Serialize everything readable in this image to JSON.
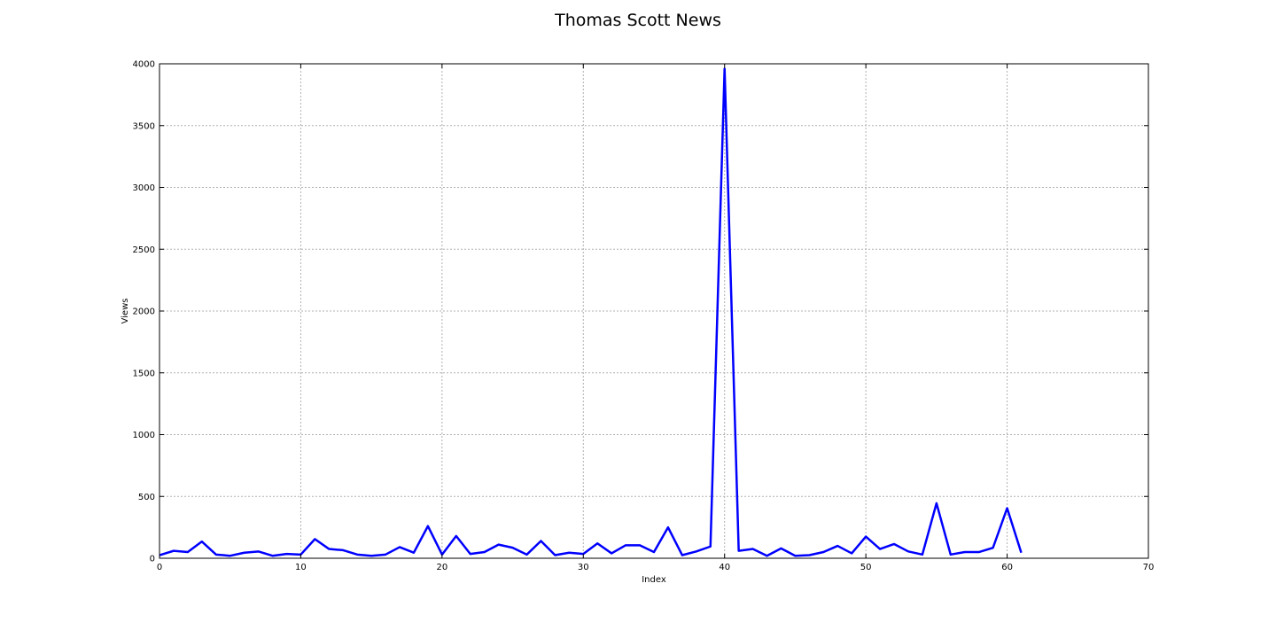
{
  "chart_data": {
    "type": "line",
    "title": "Thomas Scott News",
    "xlabel": "Index",
    "ylabel": "Views",
    "xlim": [
      0,
      70
    ],
    "ylim": [
      0,
      4000
    ],
    "xticks": [
      0,
      10,
      20,
      30,
      40,
      50,
      60,
      70
    ],
    "yticks": [
      0,
      500,
      1000,
      1500,
      2000,
      2500,
      3000,
      3500,
      4000
    ],
    "grid": true,
    "legend": "none",
    "series": [
      {
        "color": "#0000ff",
        "x": [
          0,
          1,
          2,
          3,
          4,
          5,
          6,
          7,
          8,
          9,
          10,
          11,
          12,
          13,
          14,
          15,
          16,
          17,
          18,
          19,
          20,
          21,
          22,
          23,
          24,
          25,
          26,
          27,
          28,
          29,
          30,
          31,
          32,
          33,
          34,
          35,
          36,
          37,
          38,
          39,
          40,
          41,
          42,
          43,
          44,
          45,
          46,
          47,
          48,
          49,
          50,
          51,
          52,
          53,
          54,
          55,
          56,
          57,
          58,
          59,
          60,
          61
        ],
        "values": [
          25,
          60,
          50,
          135,
          30,
          20,
          45,
          55,
          20,
          35,
          30,
          155,
          75,
          65,
          30,
          20,
          30,
          90,
          45,
          260,
          30,
          180,
          35,
          50,
          110,
          85,
          30,
          140,
          25,
          45,
          35,
          120,
          40,
          105,
          105,
          50,
          250,
          25,
          55,
          95,
          3960,
          60,
          75,
          20,
          80,
          20,
          25,
          50,
          100,
          40,
          175,
          75,
          115,
          55,
          30,
          445,
          30,
          50,
          50,
          85,
          405,
          45
        ]
      }
    ]
  }
}
